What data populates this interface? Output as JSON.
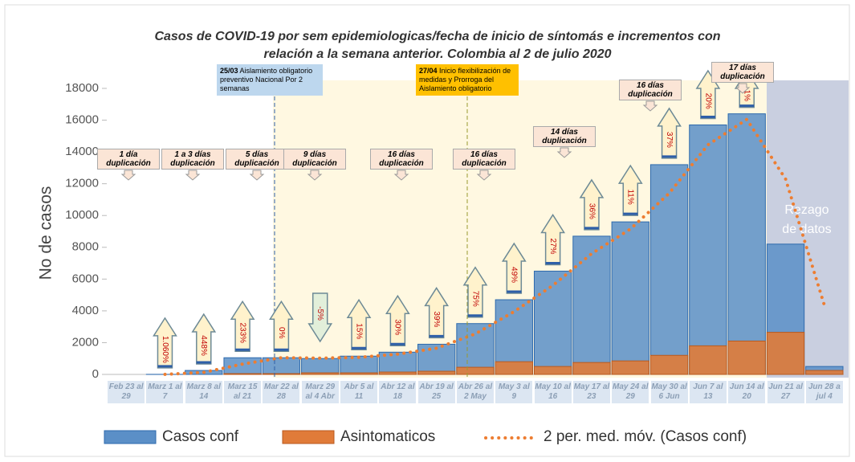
{
  "chart_data": {
    "type": "bar",
    "title": "Casos de COVID-19 por sem epidemiologicas/fecha de inicio de síntomás e incrementos con",
    "subtitle": "relación a la semana anterior. Colombia al 2 de julio 2020",
    "y_label": "No de casos",
    "categories": [
      "Feb 23 al 29",
      "Marz 1 al 7",
      "Marz 8 al 14",
      "Marz 15 al 21",
      "Mar 22 al 28",
      "Marz 29 al 4 Abr",
      "Abr 5 al 11",
      "Abr 12 al 18",
      "Abr 19 al 25",
      "Abr 26 al 2 May",
      "May 3 al 9",
      "May 10 al 16",
      "May 17 al 23",
      "May 24 al 29",
      "May 30 al 6 Jun",
      "Jun 7 al 13",
      "Jun 14 al 20",
      "Jun 21 al 27",
      "Jun 28 a jul 4"
    ],
    "series": [
      {
        "name": "Casos conf",
        "color": "#5b8fc7",
        "values": [
          0,
          5,
          250,
          1050,
          1050,
          1000,
          1150,
          1400,
          1900,
          3200,
          4700,
          6500,
          8700,
          9600,
          13200,
          15700,
          16400,
          8200,
          500
        ]
      },
      {
        "name": "Asintomaticos",
        "color": "#e07b39",
        "values": [
          0,
          0,
          0,
          50,
          50,
          100,
          100,
          150,
          200,
          450,
          800,
          500,
          750,
          850,
          1200,
          1800,
          2100,
          2650,
          250
        ]
      },
      {
        "name": "2 per. med. móv. (Casos conf)",
        "color": "#ed7d31",
        "type": "line",
        "values": [
          null,
          3,
          130,
          650,
          1050,
          1025,
          1075,
          1275,
          1650,
          2550,
          3950,
          5600,
          7600,
          9150,
          11400,
          14450,
          16050,
          12300,
          4350
        ]
      }
    ],
    "increments": {
      "values": [
        null,
        1060,
        448,
        233,
        0,
        -5,
        15,
        30,
        39,
        75,
        49,
        27,
        36,
        11,
        37,
        20,
        1,
        null,
        null
      ],
      "value_labels": [
        null,
        "1.060%",
        "448%",
        "233%",
        "0%",
        "-5%",
        "15%",
        "30%",
        "39%",
        "75%",
        "49%",
        "27%",
        "36%",
        "11%",
        "37%",
        "20%",
        "1%",
        null,
        null
      ]
    },
    "doubling": [
      {
        "days": "1 día",
        "label": "duplicación"
      },
      {
        "days": "1 a 3 días",
        "label": "duplicación"
      },
      {
        "days": "5 días",
        "label": "duplicación"
      },
      {
        "days": "9 días",
        "label": "duplicación"
      },
      {
        "days": "16 días",
        "label": "duplicación"
      },
      {
        "days": "16 días",
        "label": "duplicación"
      },
      {
        "days": "14 días",
        "label": "duplicación"
      },
      {
        "days": "16 días",
        "label": "duplicación"
      },
      {
        "days": "17 días",
        "label": "duplicación"
      }
    ],
    "events": [
      {
        "date": "25/03",
        "text": "Aislamiento obligatorio preventivo Nacional Por 2 semanas"
      },
      {
        "date": "27/04",
        "text": "Inicio flexibilización de medidas y Prorroga del Aislamiento obligatorio"
      }
    ],
    "lag_note": "Rezago de datos",
    "ylim": [
      0,
      18000
    ],
    "yticks": [
      0,
      2000,
      4000,
      6000,
      8000,
      10000,
      12000,
      14000,
      16000,
      18000
    ]
  }
}
